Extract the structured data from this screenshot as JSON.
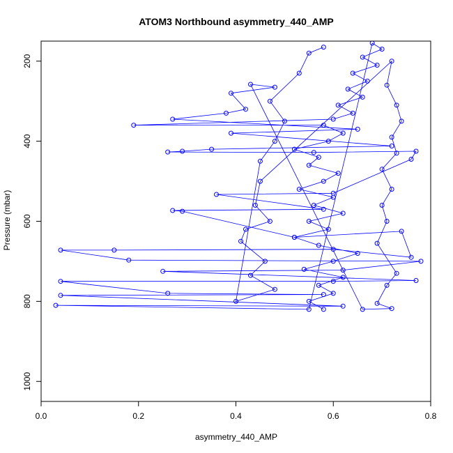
{
  "chart_data": {
    "type": "scatter",
    "title": "ATOM3 Northbound asymmetry_440_AMP",
    "xlabel": "asymmetry_440_AMP",
    "ylabel": "Pressure (mbar)",
    "xlim": [
      0.0,
      0.8
    ],
    "ylim": [
      1050,
      150
    ],
    "y_reversed": true,
    "xticks": [
      "0.0",
      "0.2",
      "0.4",
      "0.6",
      "0.8"
    ],
    "yticks": [
      "200",
      "400",
      "600",
      "800",
      "1000"
    ],
    "grid": false,
    "legend": "none",
    "marker": "open-circle",
    "connected_line": true,
    "color": "#0000ff",
    "series": [
      {
        "values": [
          {
            "x": 0.58,
            "y": 820
          },
          {
            "x": 0.55,
            "y": 800
          },
          {
            "x": 0.6,
            "y": 780
          },
          {
            "x": 0.57,
            "y": 760
          },
          {
            "x": 0.62,
            "y": 740
          },
          {
            "x": 0.54,
            "y": 720
          },
          {
            "x": 0.6,
            "y": 700
          },
          {
            "x": 0.65,
            "y": 680
          },
          {
            "x": 0.57,
            "y": 660
          },
          {
            "x": 0.52,
            "y": 640
          },
          {
            "x": 0.59,
            "y": 620
          },
          {
            "x": 0.55,
            "y": 600
          },
          {
            "x": 0.62,
            "y": 580
          },
          {
            "x": 0.56,
            "y": 560
          },
          {
            "x": 0.6,
            "y": 540
          },
          {
            "x": 0.53,
            "y": 520
          },
          {
            "x": 0.58,
            "y": 500
          },
          {
            "x": 0.61,
            "y": 480
          },
          {
            "x": 0.55,
            "y": 460
          },
          {
            "x": 0.57,
            "y": 440
          },
          {
            "x": 0.52,
            "y": 420
          },
          {
            "x": 0.59,
            "y": 400
          },
          {
            "x": 0.62,
            "y": 380
          },
          {
            "x": 0.58,
            "y": 360
          },
          {
            "x": 0.19,
            "y": 360
          },
          {
            "x": 0.6,
            "y": 345
          },
          {
            "x": 0.64,
            "y": 330
          },
          {
            "x": 0.61,
            "y": 310
          },
          {
            "x": 0.66,
            "y": 290
          },
          {
            "x": 0.63,
            "y": 270
          },
          {
            "x": 0.67,
            "y": 250
          },
          {
            "x": 0.64,
            "y": 230
          },
          {
            "x": 0.69,
            "y": 210
          },
          {
            "x": 0.66,
            "y": 190
          },
          {
            "x": 0.7,
            "y": 170
          },
          {
            "x": 0.68,
            "y": 155
          },
          {
            "x": 0.55,
            "y": 820
          },
          {
            "x": 0.03,
            "y": 810
          },
          {
            "x": 0.62,
            "y": 812
          },
          {
            "x": 0.04,
            "y": 785
          },
          {
            "x": 0.58,
            "y": 783
          },
          {
            "x": 0.26,
            "y": 780
          },
          {
            "x": 0.04,
            "y": 750
          },
          {
            "x": 0.6,
            "y": 750
          },
          {
            "x": 0.77,
            "y": 748
          },
          {
            "x": 0.25,
            "y": 725
          },
          {
            "x": 0.62,
            "y": 722
          },
          {
            "x": 0.78,
            "y": 700
          },
          {
            "x": 0.18,
            "y": 697
          },
          {
            "x": 0.04,
            "y": 672
          },
          {
            "x": 0.15,
            "y": 672
          },
          {
            "x": 0.6,
            "y": 670
          },
          {
            "x": 0.76,
            "y": 690
          },
          {
            "x": 0.74,
            "y": 625
          },
          {
            "x": 0.52,
            "y": 640
          },
          {
            "x": 0.29,
            "y": 575
          },
          {
            "x": 0.27,
            "y": 573
          },
          {
            "x": 0.58,
            "y": 570
          },
          {
            "x": 0.36,
            "y": 533
          },
          {
            "x": 0.6,
            "y": 530
          },
          {
            "x": 0.76,
            "y": 445
          },
          {
            "x": 0.77,
            "y": 425
          },
          {
            "x": 0.56,
            "y": 428
          },
          {
            "x": 0.26,
            "y": 427
          },
          {
            "x": 0.29,
            "y": 425
          },
          {
            "x": 0.35,
            "y": 420
          },
          {
            "x": 0.72,
            "y": 412
          },
          {
            "x": 0.39,
            "y": 380
          },
          {
            "x": 0.65,
            "y": 370
          },
          {
            "x": 0.27,
            "y": 345
          },
          {
            "x": 0.38,
            "y": 330
          },
          {
            "x": 0.42,
            "y": 320
          },
          {
            "x": 0.39,
            "y": 280
          },
          {
            "x": 0.48,
            "y": 265
          },
          {
            "x": 0.43,
            "y": 258
          },
          {
            "x": 0.66,
            "y": 820
          },
          {
            "x": 0.72,
            "y": 818
          },
          {
            "x": 0.69,
            "y": 805
          },
          {
            "x": 0.71,
            "y": 760
          },
          {
            "x": 0.73,
            "y": 730
          },
          {
            "x": 0.69,
            "y": 655
          },
          {
            "x": 0.71,
            "y": 600
          },
          {
            "x": 0.7,
            "y": 560
          },
          {
            "x": 0.72,
            "y": 520
          },
          {
            "x": 0.7,
            "y": 470
          },
          {
            "x": 0.73,
            "y": 430
          },
          {
            "x": 0.72,
            "y": 390
          },
          {
            "x": 0.74,
            "y": 350
          },
          {
            "x": 0.73,
            "y": 310
          },
          {
            "x": 0.71,
            "y": 260
          },
          {
            "x": 0.72,
            "y": 200
          },
          {
            "x": 0.45,
            "y": 500
          },
          {
            "x": 0.44,
            "y": 560
          },
          {
            "x": 0.47,
            "y": 600
          },
          {
            "x": 0.42,
            "y": 620
          },
          {
            "x": 0.41,
            "y": 650
          },
          {
            "x": 0.46,
            "y": 700
          },
          {
            "x": 0.43,
            "y": 735
          },
          {
            "x": 0.48,
            "y": 770
          },
          {
            "x": 0.4,
            "y": 800
          },
          {
            "x": 0.45,
            "y": 450
          },
          {
            "x": 0.48,
            "y": 400
          },
          {
            "x": 0.5,
            "y": 350
          },
          {
            "x": 0.47,
            "y": 300
          },
          {
            "x": 0.53,
            "y": 230
          },
          {
            "x": 0.55,
            "y": 180
          },
          {
            "x": 0.58,
            "y": 165
          }
        ]
      }
    ]
  }
}
